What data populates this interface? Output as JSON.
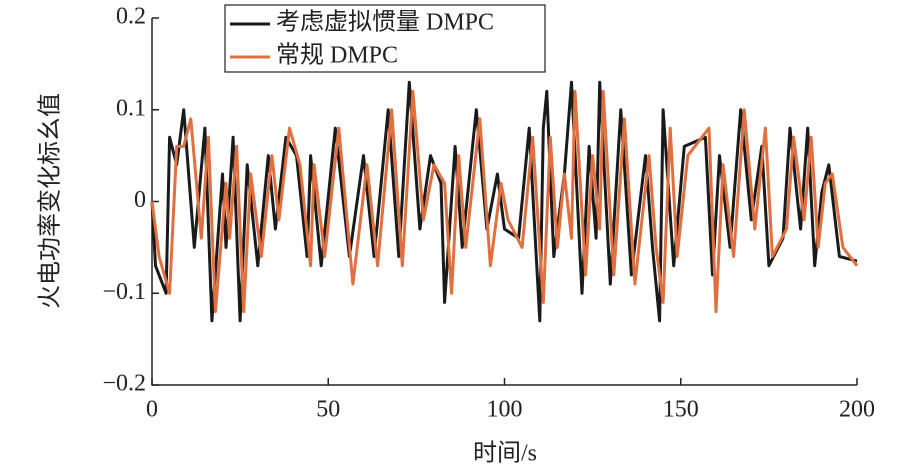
{
  "chart_data": {
    "type": "line",
    "xlabel": "时间/s",
    "ylabel": "火电功率变化标幺值",
    "xlim": [
      0,
      200
    ],
    "xticks": [
      0,
      50,
      100,
      150,
      200
    ],
    "ylim": [
      -0.2,
      0.2
    ],
    "yticks": [
      {
        "value": -0.2,
        "label": "−0.2"
      },
      {
        "value": -0.1,
        "label": "−0.1"
      },
      0,
      0.1,
      0.2
    ],
    "series": [
      {
        "name": "考虑虚拟惯量 DMPC",
        "color": "#1a1a1a",
        "x": [
          0,
          1,
          4,
          5,
          7,
          9,
          12,
          15,
          17,
          20,
          21,
          23,
          25,
          27,
          30,
          33,
          35,
          38,
          41,
          44,
          45,
          48,
          52,
          56,
          60,
          63,
          67,
          70,
          73,
          76,
          79,
          82,
          83,
          86,
          88,
          92,
          95,
          98,
          100,
          104,
          107,
          110,
          111,
          112,
          114,
          117,
          119,
          122,
          124,
          126,
          127,
          130,
          133,
          136,
          140,
          142,
          144,
          145,
          148,
          151,
          157,
          159,
          161,
          164,
          167,
          170,
          173,
          175,
          179,
          181,
          184,
          186,
          188,
          190,
          192,
          195,
          200
        ],
        "values": [
          0,
          -0.07,
          -0.1,
          0.07,
          0.04,
          0.1,
          -0.05,
          0.08,
          -0.13,
          0.03,
          -0.05,
          0.07,
          -0.13,
          0.04,
          -0.07,
          0.05,
          -0.03,
          0.07,
          0.05,
          -0.06,
          0.05,
          -0.07,
          0.08,
          -0.06,
          0.05,
          -0.06,
          0.1,
          -0.06,
          0.13,
          -0.03,
          0.05,
          0.02,
          -0.11,
          0.06,
          -0.05,
          0.1,
          -0.03,
          0.03,
          -0.03,
          -0.04,
          0.08,
          -0.13,
          0.08,
          0.12,
          -0.06,
          0.03,
          0.13,
          -0.1,
          0.06,
          -0.04,
          0.13,
          -0.09,
          0.1,
          -0.08,
          0.05,
          -0.05,
          -0.13,
          0.1,
          -0.07,
          0.06,
          0.07,
          -0.08,
          0.05,
          -0.05,
          0.1,
          -0.02,
          0.06,
          -0.07,
          -0.04,
          0.08,
          -0.03,
          0.08,
          -0.07,
          0.01,
          0.04,
          -0.06,
          -0.065
        ]
      },
      {
        "name": "常规 DMPC",
        "color": "#e07040",
        "x": [
          0,
          2,
          5,
          7,
          9,
          11,
          14,
          16,
          18,
          21,
          22,
          24,
          26,
          28,
          31,
          34,
          36,
          39,
          42,
          45,
          46,
          49,
          53,
          57,
          61,
          64,
          68,
          71,
          74,
          77,
          80,
          83,
          85,
          87,
          89,
          93,
          96,
          99,
          101,
          105,
          108,
          111,
          113,
          115,
          117,
          119,
          120,
          123,
          125,
          127,
          128,
          131,
          134,
          137,
          141,
          143,
          145,
          147,
          149,
          152,
          158,
          160,
          162,
          165,
          168,
          171,
          174,
          176,
          180,
          182,
          185,
          187,
          189,
          191,
          193,
          196,
          200
        ],
        "values": [
          0,
          -0.06,
          -0.1,
          0.06,
          0.06,
          0.09,
          -0.04,
          0.07,
          -0.12,
          0.02,
          -0.04,
          0.06,
          -0.12,
          0.03,
          -0.06,
          0.05,
          -0.02,
          0.08,
          0.04,
          -0.07,
          0.04,
          -0.06,
          0.08,
          -0.09,
          0.04,
          -0.07,
          0.1,
          -0.07,
          0.12,
          -0.02,
          0.04,
          0.02,
          -0.1,
          0.05,
          -0.05,
          0.09,
          -0.07,
          0.02,
          -0.02,
          -0.05,
          0.07,
          -0.11,
          0.07,
          -0.05,
          0.03,
          -0.04,
          0.12,
          -0.08,
          0.05,
          -0.03,
          0.12,
          -0.08,
          0.09,
          -0.09,
          0.05,
          -0.05,
          -0.11,
          0.08,
          -0.06,
          0.05,
          0.08,
          -0.12,
          0.04,
          -0.06,
          0.1,
          -0.03,
          0.08,
          -0.06,
          -0.03,
          0.07,
          -0.02,
          0.07,
          -0.05,
          0.02,
          0.03,
          -0.05,
          -0.07
        ]
      }
    ]
  }
}
